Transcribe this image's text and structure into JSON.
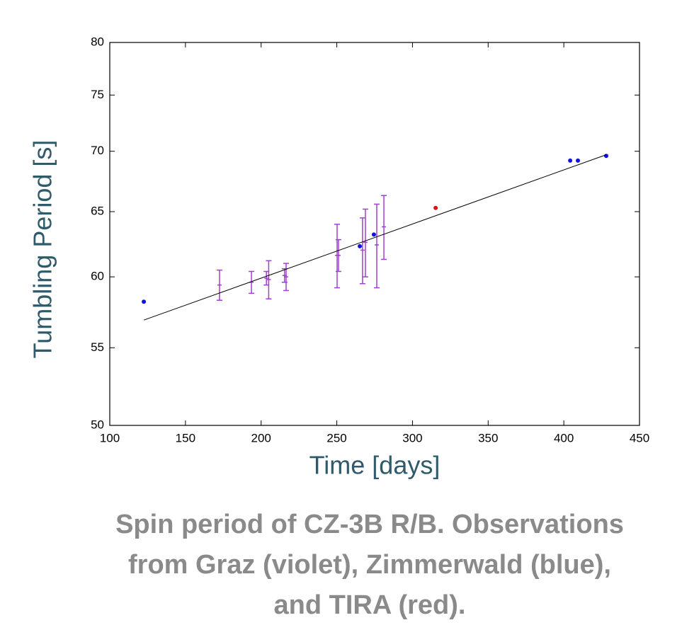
{
  "chart_data": {
    "type": "scatter",
    "xlabel": "Time [days]",
    "ylabel": "Tumbling Period [s]",
    "caption": [
      "Spin period of CZ-3B R/B. Observations",
      "from Graz (violet), Zimmerwald (blue),",
      "and TIRA (red)."
    ],
    "xlim": [
      100,
      450
    ],
    "xticks": [
      100,
      150,
      200,
      250,
      300,
      350,
      400,
      450
    ],
    "ylim": [
      50,
      80
    ],
    "yticks": [
      50,
      55,
      60,
      65,
      70,
      75,
      80
    ],
    "ylog": true,
    "grid": false,
    "series": [
      {
        "color": "#a040d0",
        "errorbars": true,
        "x": [
          172.5,
          193.6,
          203.5,
          205,
          215.5,
          216.5,
          250.2,
          251.1,
          267,
          268.9,
          276.4,
          281.1
        ],
        "values": [
          59.4,
          59.6,
          59.9,
          59.8,
          60.1,
          60.0,
          61.6,
          61.6,
          62.0,
          62.6,
          62.4,
          63.8
        ],
        "errors": [
          1.1,
          0.8,
          0.5,
          1.4,
          0.5,
          1.0,
          2.4,
          1.2,
          2.5,
          2.6,
          3.2,
          2.5
        ]
      },
      {
        "color": "#1010e0",
        "x": [
          122.5,
          265.2,
          274.5,
          404.2,
          409.3,
          428
        ],
        "values": [
          58.2,
          62.3,
          63.2,
          69.2,
          69.2,
          69.6
        ]
      },
      {
        "color": "#e01010",
        "x": [
          315.3
        ],
        "values": [
          65.3
        ]
      },
      {
        "color": "#000000",
        "line": true,
        "x": [
          122.5,
          428
        ],
        "values": [
          56.9,
          69.7
        ]
      }
    ]
  }
}
